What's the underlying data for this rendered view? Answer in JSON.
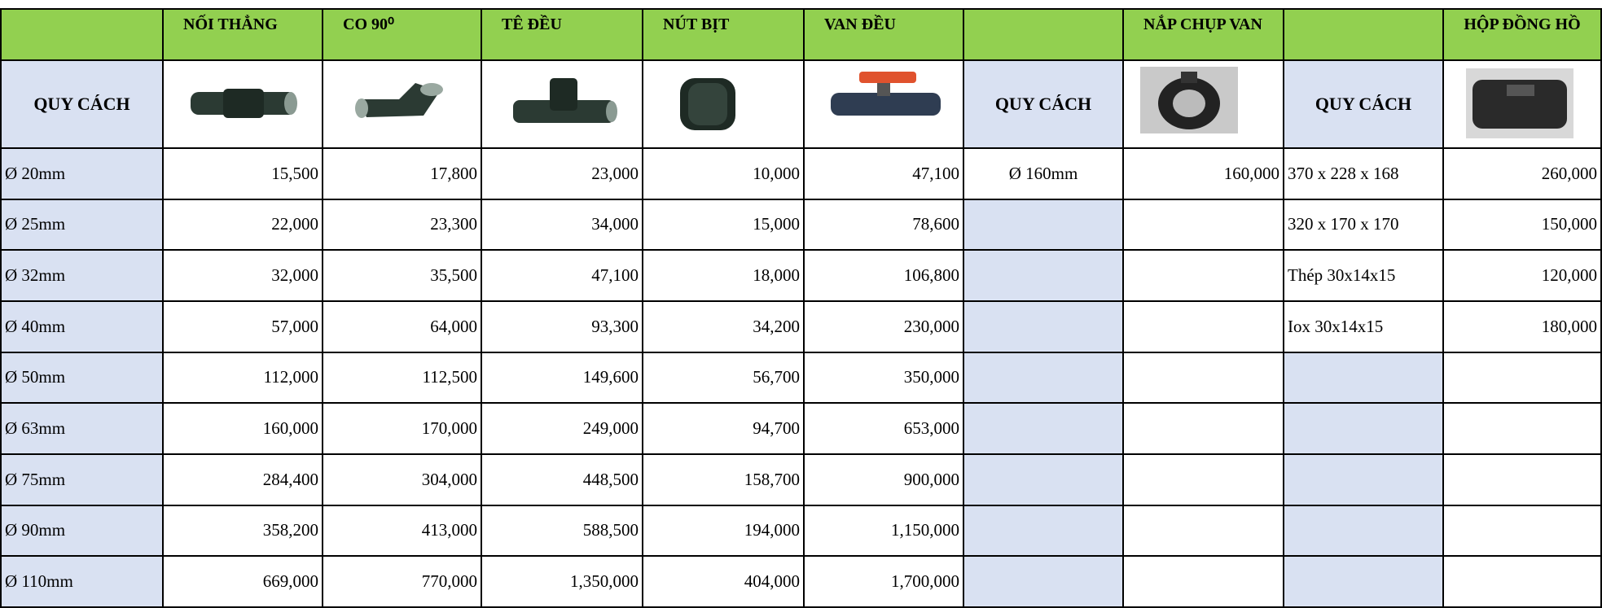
{
  "header": {
    "columns": [
      null,
      "NỐI THẲNG",
      "CO 90⁰",
      "TÊ ĐỀU",
      "NÚT BỊT",
      "VAN ĐỀU",
      null,
      "NẮP CHỤP VAN",
      null,
      "HỘP ĐỒNG HỒ"
    ]
  },
  "spec_label": "QUY CÁCH",
  "fittings": {
    "rows": [
      [
        "Ø 20mm",
        "15,500",
        "17,800",
        "23,000",
        "10,000",
        "47,100"
      ],
      [
        "Ø 25mm",
        "22,000",
        "23,300",
        "34,000",
        "15,000",
        "78,600"
      ],
      [
        "Ø 32mm",
        "32,000",
        "35,500",
        "47,100",
        "18,000",
        "106,800"
      ],
      [
        "Ø 40mm",
        "57,000",
        "64,000",
        "93,300",
        "34,200",
        "230,000"
      ],
      [
        "Ø 50mm",
        "112,000",
        "112,500",
        "149,600",
        "56,700",
        "350,000"
      ],
      [
        "Ø 63mm",
        "160,000",
        "170,000",
        "249,000",
        "94,700",
        "653,000"
      ],
      [
        "Ø 75mm",
        "284,400",
        "304,000",
        "448,500",
        "158,700",
        "900,000"
      ],
      [
        "Ø 90mm",
        "358,200",
        "413,000",
        "588,500",
        "194,000",
        "1,150,000"
      ],
      [
        "Ø 110mm",
        "669,000",
        "770,000",
        "1,350,000",
        "404,000",
        "1,700,000"
      ]
    ]
  },
  "valve_cover": {
    "rows": [
      [
        "Ø 160mm",
        "160,000"
      ]
    ]
  },
  "meter_box": {
    "rows": [
      [
        "370 x 228 x 168",
        "260,000"
      ],
      [
        "320 x 170 x 170",
        "150,000"
      ],
      [
        "Thép 30x14x15",
        "120,000"
      ],
      [
        "Iox 30x14x15",
        "180,000"
      ]
    ]
  }
}
